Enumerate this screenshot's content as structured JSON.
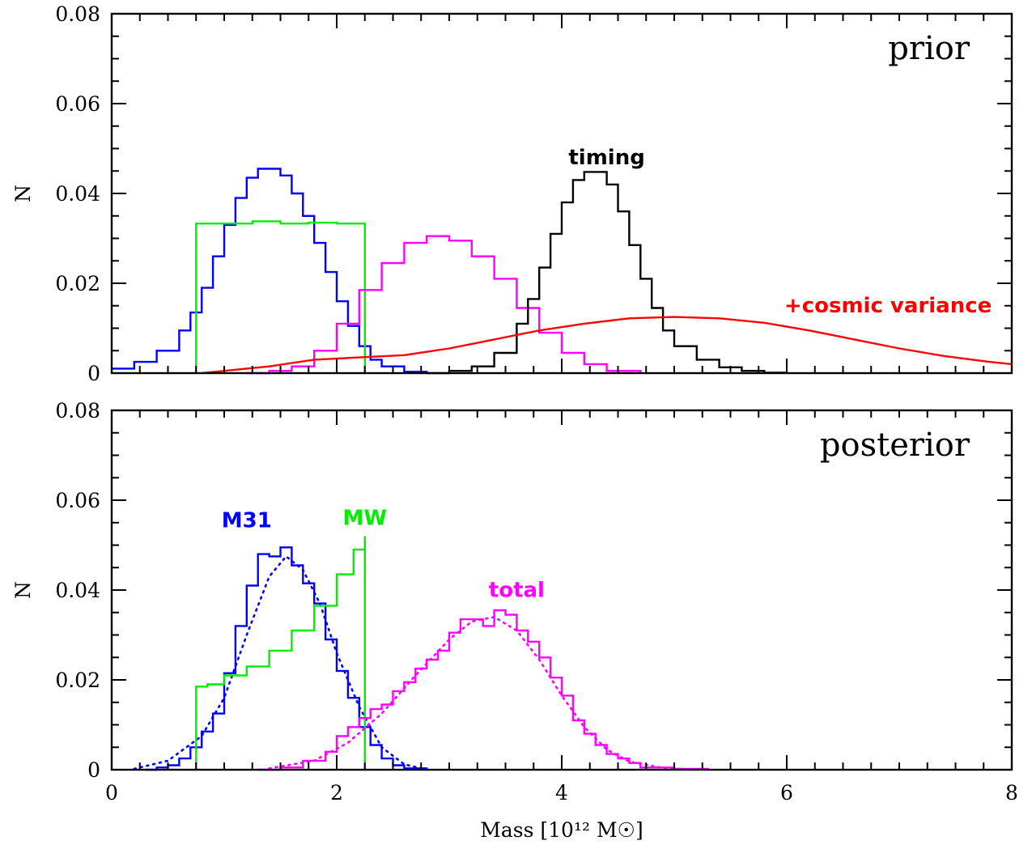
{
  "chart_data": [
    {
      "type": "line",
      "title": "prior",
      "xlabel": "",
      "ylabel": "N",
      "xlim": [
        0,
        8
      ],
      "ylim": [
        0,
        0.08
      ],
      "xticks": [
        0,
        2,
        4,
        6,
        8
      ],
      "yticks": [
        0,
        0.02,
        0.04,
        0.06,
        0.08
      ],
      "ytick_labels": [
        "0",
        "0.02",
        "0.04",
        "0.06",
        "0.08"
      ],
      "show_x_tick_labels": false,
      "grid": false,
      "series": [
        {
          "color": "#0000ff",
          "style": "step",
          "points": [
            [
              0,
              0.001
            ],
            [
              0.2,
              0.0025
            ],
            [
              0.4,
              0.005
            ],
            [
              0.6,
              0.0095
            ],
            [
              0.7,
              0.0135
            ],
            [
              0.8,
              0.019
            ],
            [
              0.9,
              0.026
            ],
            [
              1.0,
              0.033
            ],
            [
              1.1,
              0.039
            ],
            [
              1.2,
              0.0435
            ],
            [
              1.3,
              0.0455
            ],
            [
              1.4,
              0.0455
            ],
            [
              1.5,
              0.044
            ],
            [
              1.6,
              0.04
            ],
            [
              1.7,
              0.035
            ],
            [
              1.8,
              0.029
            ],
            [
              1.9,
              0.0225
            ],
            [
              2.0,
              0.016
            ],
            [
              2.1,
              0.0105
            ],
            [
              2.2,
              0.006
            ],
            [
              2.3,
              0.003
            ],
            [
              2.4,
              0.0015
            ],
            [
              2.6,
              0.0003
            ],
            [
              2.8,
              0
            ]
          ]
        },
        {
          "color": "#00ee00",
          "style": "step",
          "points": [
            [
              0.75,
              0
            ],
            [
              0.75,
              0.0333
            ],
            [
              1.0,
              0.0333
            ],
            [
              1.25,
              0.0338
            ],
            [
              1.5,
              0.0333
            ],
            [
              1.75,
              0.0335
            ],
            [
              2.0,
              0.0333
            ],
            [
              2.25,
              0.0332
            ],
            [
              2.25,
              0
            ]
          ]
        },
        {
          "color": "#ff00ff",
          "style": "step",
          "points": [
            [
              1.2,
              0
            ],
            [
              1.4,
              0.0005
            ],
            [
              1.6,
              0.0015
            ],
            [
              1.8,
              0.005
            ],
            [
              2.0,
              0.011
            ],
            [
              2.2,
              0.0185
            ],
            [
              2.4,
              0.0245
            ],
            [
              2.6,
              0.029
            ],
            [
              2.8,
              0.0305
            ],
            [
              3.0,
              0.0295
            ],
            [
              3.2,
              0.026
            ],
            [
              3.4,
              0.021
            ],
            [
              3.6,
              0.0145
            ],
            [
              3.8,
              0.009
            ],
            [
              4.0,
              0.0045
            ],
            [
              4.2,
              0.002
            ],
            [
              4.4,
              0.0005
            ],
            [
              4.7,
              0
            ]
          ]
        },
        {
          "color": "#000000",
          "style": "step",
          "points": [
            [
              2.8,
              0
            ],
            [
              3.0,
              0.0005
            ],
            [
              3.2,
              0.0015
            ],
            [
              3.4,
              0.0045
            ],
            [
              3.6,
              0.011
            ],
            [
              3.7,
              0.0165
            ],
            [
              3.8,
              0.0235
            ],
            [
              3.9,
              0.031
            ],
            [
              4.0,
              0.038
            ],
            [
              4.1,
              0.043
            ],
            [
              4.2,
              0.0448
            ],
            [
              4.3,
              0.0448
            ],
            [
              4.4,
              0.042
            ],
            [
              4.5,
              0.036
            ],
            [
              4.6,
              0.0285
            ],
            [
              4.7,
              0.021
            ],
            [
              4.8,
              0.0145
            ],
            [
              4.9,
              0.0095
            ],
            [
              5.0,
              0.006
            ],
            [
              5.2,
              0.003
            ],
            [
              5.4,
              0.0013
            ],
            [
              5.6,
              0.0005
            ],
            [
              5.8,
              0.0001
            ],
            [
              6.0,
              0
            ]
          ]
        },
        {
          "color": "#ff0000",
          "style": "smooth",
          "points": [
            [
              0.8,
              0
            ],
            [
              1.0,
              0.0005
            ],
            [
              1.4,
              0.0015
            ],
            [
              1.8,
              0.003
            ],
            [
              2.2,
              0.0035
            ],
            [
              2.6,
              0.004
            ],
            [
              3.0,
              0.0055
            ],
            [
              3.4,
              0.0075
            ],
            [
              3.8,
              0.0095
            ],
            [
              4.2,
              0.011
            ],
            [
              4.6,
              0.0122
            ],
            [
              5.0,
              0.0125
            ],
            [
              5.4,
              0.0122
            ],
            [
              5.8,
              0.0112
            ],
            [
              6.2,
              0.0095
            ],
            [
              6.6,
              0.0075
            ],
            [
              7.0,
              0.0055
            ],
            [
              7.4,
              0.0038
            ],
            [
              7.8,
              0.0025
            ],
            [
              8.0,
              0.002
            ]
          ]
        }
      ],
      "annotations": [
        {
          "text": "timing",
          "x": 4.4,
          "y": 0.0465,
          "color": "#000000"
        },
        {
          "text": "+cosmic variance",
          "x": 6.9,
          "y": 0.0135,
          "color": "#ff0000"
        }
      ]
    },
    {
      "type": "line",
      "title": "posterior",
      "xlabel": "Mass [10¹² M☉]",
      "ylabel": "N",
      "xlim": [
        0,
        8
      ],
      "ylim": [
        0,
        0.08
      ],
      "xticks": [
        0,
        2,
        4,
        6,
        8
      ],
      "xtick_labels": [
        "0",
        "2",
        "4",
        "6",
        "8"
      ],
      "yticks": [
        0,
        0.02,
        0.04,
        0.06,
        0.08
      ],
      "ytick_labels": [
        "0",
        "0.02",
        "0.04",
        "0.06",
        "0.08"
      ],
      "show_x_tick_labels": true,
      "grid": false,
      "series": [
        {
          "color": "#0000ff",
          "style": "step",
          "points": [
            [
              0.3,
              0
            ],
            [
              0.4,
              0.0005
            ],
            [
              0.5,
              0.001
            ],
            [
              0.6,
              0.0025
            ],
            [
              0.7,
              0.005
            ],
            [
              0.8,
              0.0085
            ],
            [
              0.9,
              0.0125
            ],
            [
              1.0,
              0.0215
            ],
            [
              1.1,
              0.032
            ],
            [
              1.2,
              0.041
            ],
            [
              1.3,
              0.048
            ],
            [
              1.4,
              0.0475
            ],
            [
              1.5,
              0.0495
            ],
            [
              1.6,
              0.0455
            ],
            [
              1.7,
              0.0415
            ],
            [
              1.8,
              0.037
            ],
            [
              1.9,
              0.029
            ],
            [
              2.0,
              0.022
            ],
            [
              2.1,
              0.016
            ],
            [
              2.2,
              0.0095
            ],
            [
              2.3,
              0.0055
            ],
            [
              2.4,
              0.0025
            ],
            [
              2.5,
              0.001
            ],
            [
              2.6,
              0.0003
            ],
            [
              2.8,
              0
            ]
          ]
        },
        {
          "color": "#0000ff",
          "style": "dotted",
          "points": [
            [
              0.2,
              0.0002
            ],
            [
              0.5,
              0.002
            ],
            [
              0.8,
              0.0075
            ],
            [
              1.0,
              0.016
            ],
            [
              1.2,
              0.03
            ],
            [
              1.4,
              0.043
            ],
            [
              1.55,
              0.0475
            ],
            [
              1.7,
              0.0445
            ],
            [
              1.85,
              0.037
            ],
            [
              2.0,
              0.026
            ],
            [
              2.2,
              0.014
            ],
            [
              2.4,
              0.005
            ],
            [
              2.6,
              0.0012
            ],
            [
              2.8,
              0
            ]
          ]
        },
        {
          "color": "#00ee00",
          "style": "step",
          "points": [
            [
              0.75,
              0
            ],
            [
              0.75,
              0.0185
            ],
            [
              0.85,
              0.019
            ],
            [
              1.0,
              0.021
            ],
            [
              1.2,
              0.023
            ],
            [
              1.4,
              0.0265
            ],
            [
              1.6,
              0.031
            ],
            [
              1.8,
              0.0365
            ],
            [
              2.0,
              0.0435
            ],
            [
              2.15,
              0.049
            ],
            [
              2.25,
              0.052
            ],
            [
              2.25,
              0
            ]
          ]
        },
        {
          "color": "#ff00ff",
          "style": "step",
          "points": [
            [
              1.3,
              0
            ],
            [
              1.5,
              0.0005
            ],
            [
              1.7,
              0.002
            ],
            [
              1.9,
              0.004
            ],
            [
              2.0,
              0.0075
            ],
            [
              2.1,
              0.0095
            ],
            [
              2.2,
              0.0115
            ],
            [
              2.3,
              0.0135
            ],
            [
              2.4,
              0.0145
            ],
            [
              2.5,
              0.0175
            ],
            [
              2.6,
              0.0195
            ],
            [
              2.7,
              0.0225
            ],
            [
              2.8,
              0.0245
            ],
            [
              2.9,
              0.0265
            ],
            [
              3.0,
              0.0305
            ],
            [
              3.1,
              0.0335
            ],
            [
              3.2,
              0.0335
            ],
            [
              3.3,
              0.032
            ],
            [
              3.4,
              0.0355
            ],
            [
              3.5,
              0.0345
            ],
            [
              3.6,
              0.031
            ],
            [
              3.7,
              0.0285
            ],
            [
              3.8,
              0.025
            ],
            [
              3.9,
              0.0205
            ],
            [
              4.0,
              0.0165
            ],
            [
              4.1,
              0.011
            ],
            [
              4.2,
              0.008
            ],
            [
              4.3,
              0.0055
            ],
            [
              4.4,
              0.0035
            ],
            [
              4.5,
              0.0025
            ],
            [
              4.6,
              0.0015
            ],
            [
              4.7,
              0.0005
            ],
            [
              5.0,
              0.0002
            ],
            [
              5.3,
              0
            ]
          ]
        },
        {
          "color": "#ff00ff",
          "style": "dotted",
          "points": [
            [
              1.4,
              0.0003
            ],
            [
              1.8,
              0.002
            ],
            [
              2.1,
              0.006
            ],
            [
              2.4,
              0.0125
            ],
            [
              2.7,
              0.021
            ],
            [
              3.0,
              0.029
            ],
            [
              3.2,
              0.033
            ],
            [
              3.4,
              0.034
            ],
            [
              3.6,
              0.031
            ],
            [
              3.8,
              0.0245
            ],
            [
              4.0,
              0.0165
            ],
            [
              4.2,
              0.0095
            ],
            [
              4.4,
              0.0045
            ],
            [
              4.6,
              0.0018
            ],
            [
              4.9,
              0.0004
            ],
            [
              5.2,
              0
            ]
          ]
        }
      ],
      "annotations": [
        {
          "text": "M31",
          "x": 1.2,
          "y": 0.054,
          "color": "#0000ff"
        },
        {
          "text": "MW",
          "x": 2.25,
          "y": 0.0545,
          "color": "#00ee00"
        },
        {
          "text": "total",
          "x": 3.6,
          "y": 0.0385,
          "color": "#ff00ff"
        }
      ]
    }
  ]
}
